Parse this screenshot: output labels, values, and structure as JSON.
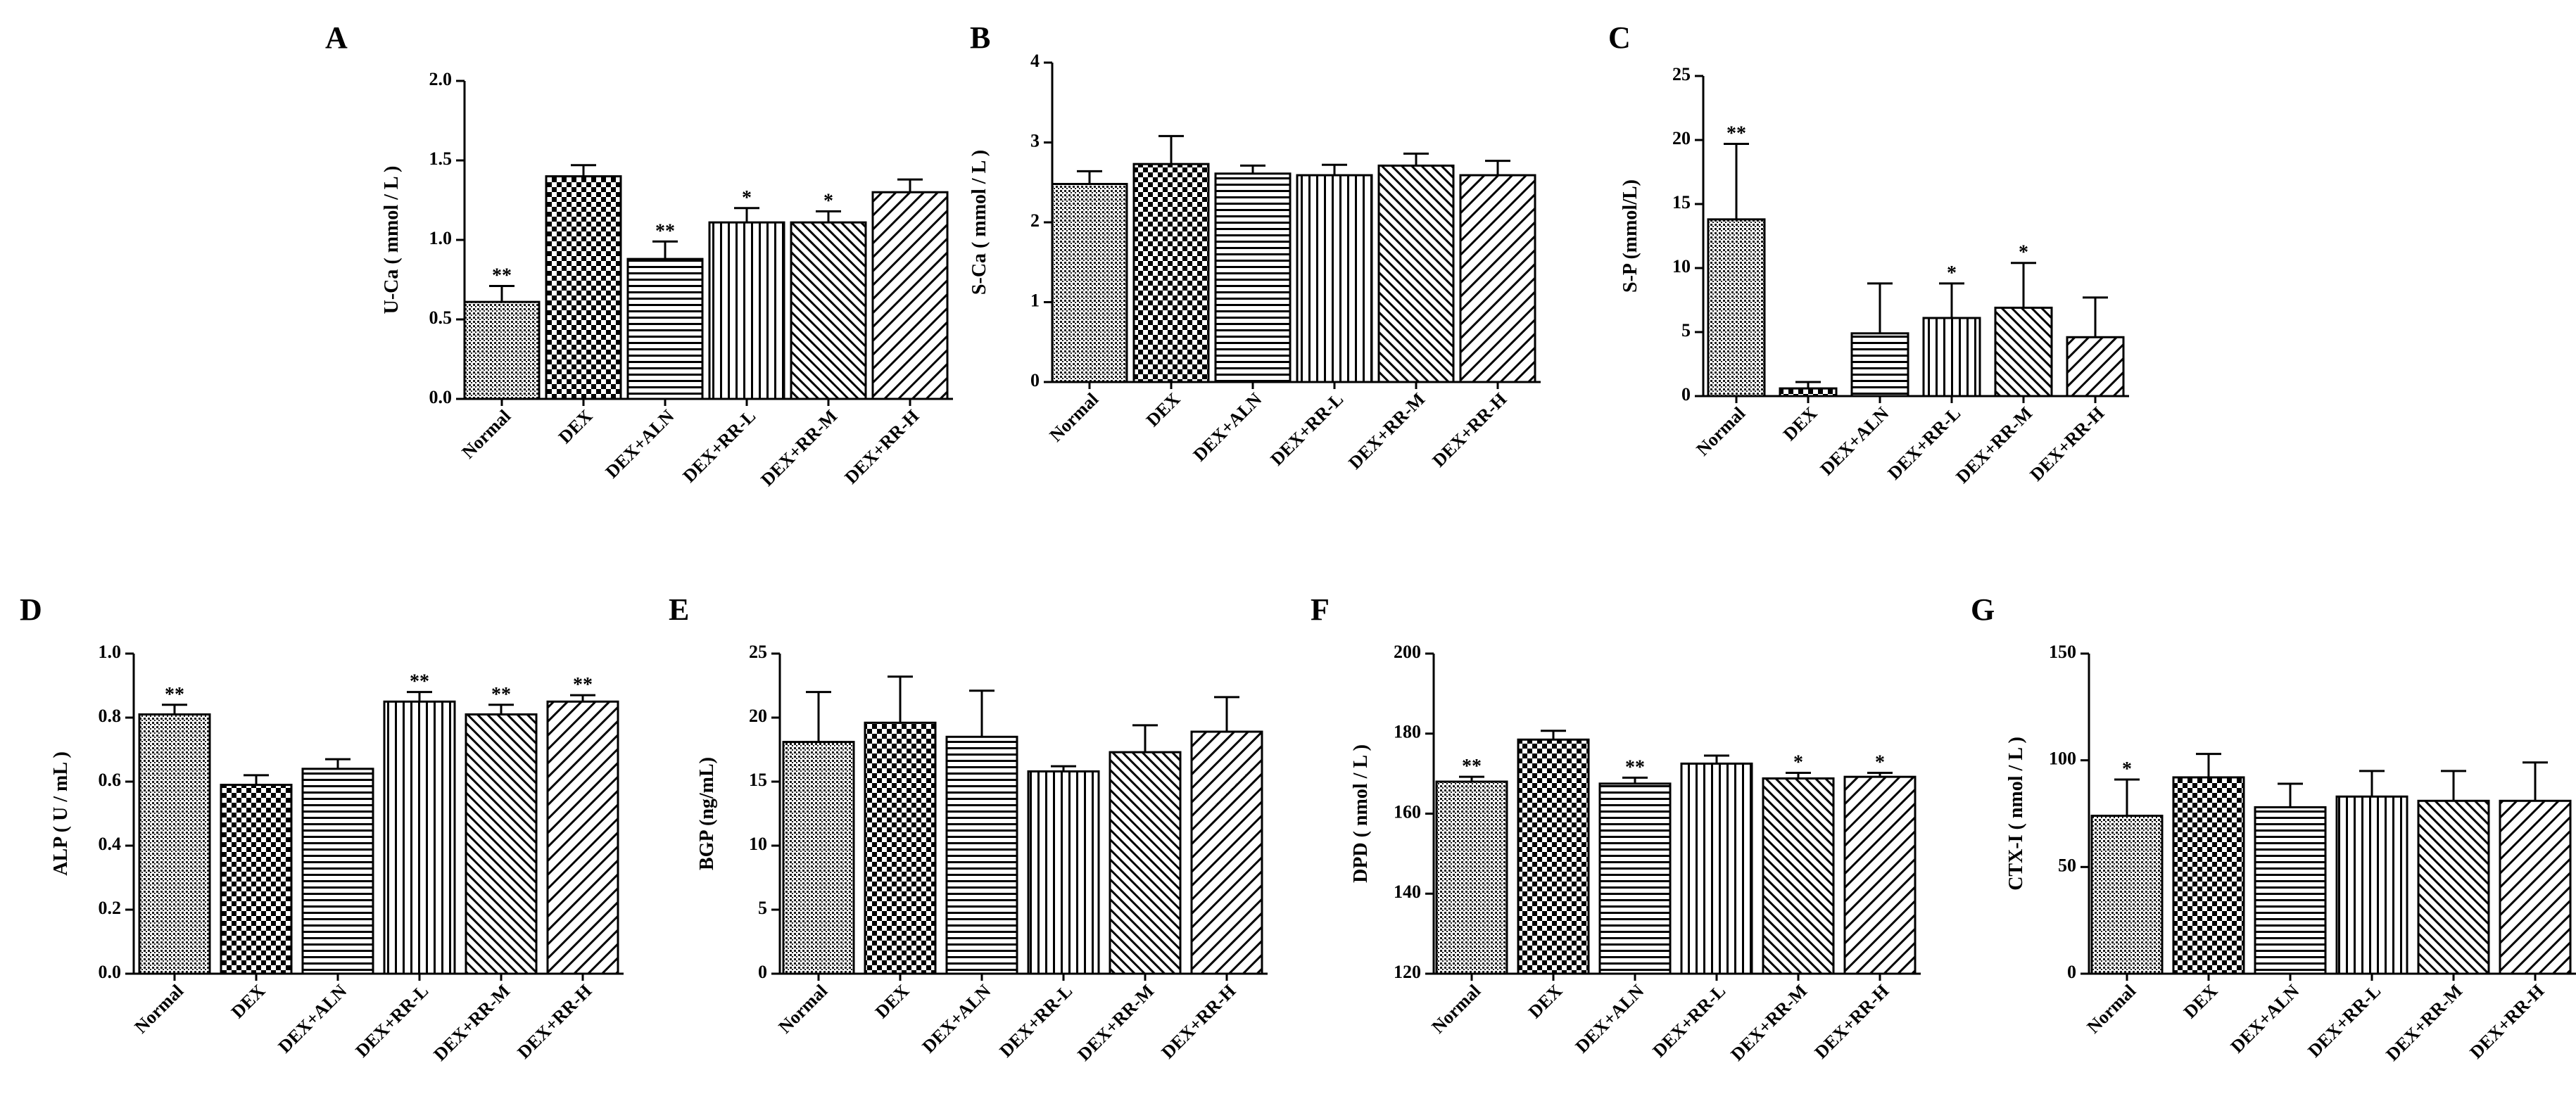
{
  "figure": {
    "panel_count": 7
  },
  "patterns": {
    "Normal": "fine-dots",
    "DEX": "checkerboard",
    "DEX+ALN": "horizontal-lines",
    "DEX+RR-L": "vertical-lines",
    "DEX+RR-M": "diagonal-lines-dense",
    "DEX+RR-H": "diagonal-lines-wide"
  },
  "chart_data": [
    {
      "panel": "A",
      "type": "bar",
      "title": "",
      "xlabel": "",
      "ylabel": "U-Ca ( mmol / L )",
      "ylim": [
        0,
        2.0
      ],
      "yticks": [
        "0.0",
        "0.5",
        "1.0",
        "1.5",
        "2.0"
      ],
      "categories": [
        "Normal",
        "DEX",
        "DEX+ALN",
        "DEX+RR-L",
        "DEX+RR-M",
        "DEX+RR-H"
      ],
      "values": [
        0.61,
        1.4,
        0.88,
        1.11,
        1.11,
        1.3
      ],
      "errors": [
        0.1,
        0.07,
        0.11,
        0.09,
        0.07,
        0.08
      ],
      "significance": [
        "**",
        "",
        "**",
        "*",
        "*",
        ""
      ]
    },
    {
      "panel": "B",
      "type": "bar",
      "title": "",
      "xlabel": "",
      "ylabel": "S-Ca ( mmol / L )",
      "ylim": [
        0,
        4
      ],
      "yticks": [
        "0",
        "1",
        "2",
        "3",
        "4"
      ],
      "categories": [
        "Normal",
        "DEX",
        "DEX+ALN",
        "DEX+RR-L",
        "DEX+RR-M",
        "DEX+RR-H"
      ],
      "values": [
        2.48,
        2.73,
        2.61,
        2.59,
        2.71,
        2.59
      ],
      "errors": [
        0.16,
        0.35,
        0.1,
        0.13,
        0.15,
        0.18
      ],
      "significance": [
        "",
        "",
        "",
        "",
        "",
        ""
      ]
    },
    {
      "panel": "C",
      "type": "bar",
      "title": "",
      "xlabel": "",
      "ylabel": "S-P (mmol/L)",
      "ylim": [
        0,
        25
      ],
      "yticks": [
        "0",
        "5",
        "10",
        "15",
        "20",
        "25"
      ],
      "categories": [
        "Normal",
        "DEX",
        "DEX+ALN",
        "DEX+RR-L",
        "DEX+RR-M",
        "DEX+RR-H"
      ],
      "values": [
        13.8,
        0.6,
        4.9,
        6.1,
        6.9,
        4.6
      ],
      "errors": [
        5.9,
        0.5,
        3.9,
        2.7,
        3.5,
        3.1
      ],
      "significance": [
        "**",
        "",
        "",
        "*",
        "*",
        ""
      ]
    },
    {
      "panel": "D",
      "type": "bar",
      "title": "",
      "xlabel": "",
      "ylabel": "ALP ( U / mL )",
      "ylim": [
        0,
        1.0
      ],
      "yticks": [
        "0.0",
        "0.2",
        "0.4",
        "0.6",
        "0.8",
        "1.0"
      ],
      "categories": [
        "Normal",
        "DEX",
        "DEX+ALN",
        "DEX+RR-L",
        "DEX+RR-M",
        "DEX+RR-H"
      ],
      "values": [
        0.81,
        0.59,
        0.64,
        0.85,
        0.81,
        0.85
      ],
      "errors": [
        0.03,
        0.03,
        0.03,
        0.03,
        0.03,
        0.02
      ],
      "significance": [
        "**",
        "",
        "",
        "**",
        "**",
        "**"
      ]
    },
    {
      "panel": "E",
      "type": "bar",
      "title": "",
      "xlabel": "",
      "ylabel": "BGP (ng/mL)",
      "ylim": [
        0,
        25
      ],
      "yticks": [
        "0",
        "5",
        "10",
        "15",
        "20",
        "25"
      ],
      "categories": [
        "Normal",
        "DEX",
        "DEX+ALN",
        "DEX+RR-L",
        "DEX+RR-M",
        "DEX+RR-H"
      ],
      "values": [
        18.1,
        19.6,
        18.5,
        15.8,
        17.3,
        18.9
      ],
      "errors": [
        3.9,
        3.6,
        3.6,
        0.4,
        2.1,
        2.7
      ],
      "significance": [
        "",
        "",
        "",
        "",
        "",
        ""
      ]
    },
    {
      "panel": "F",
      "type": "bar",
      "title": "",
      "xlabel": "",
      "ylabel": "DPD ( nmol / L )",
      "ylim": [
        120,
        200
      ],
      "yticks": [
        "120",
        "140",
        "160",
        "180",
        "200"
      ],
      "categories": [
        "Normal",
        "DEX",
        "DEX+ALN",
        "DEX+RR-L",
        "DEX+RR-M",
        "DEX+RR-H"
      ],
      "values": [
        168.0,
        178.5,
        167.5,
        172.5,
        168.8,
        169.2
      ],
      "errors": [
        1.2,
        2.2,
        1.5,
        2.0,
        1.4,
        1.0
      ],
      "significance": [
        "**",
        "",
        "**",
        "",
        "*",
        "*"
      ]
    },
    {
      "panel": "G",
      "type": "bar",
      "title": "",
      "xlabel": "",
      "ylabel": "CTX-I ( nmol / L )",
      "ylim": [
        0,
        150
      ],
      "yticks": [
        "0",
        "50",
        "100",
        "150"
      ],
      "categories": [
        "Normal",
        "DEX",
        "DEX+ALN",
        "DEX+RR-L",
        "DEX+RR-M",
        "DEX+RR-H"
      ],
      "values": [
        74,
        92,
        78,
        83,
        81,
        81
      ],
      "errors": [
        17,
        11,
        11,
        12,
        14,
        18
      ],
      "significance": [
        "*",
        "",
        "",
        "",
        "",
        ""
      ]
    }
  ]
}
